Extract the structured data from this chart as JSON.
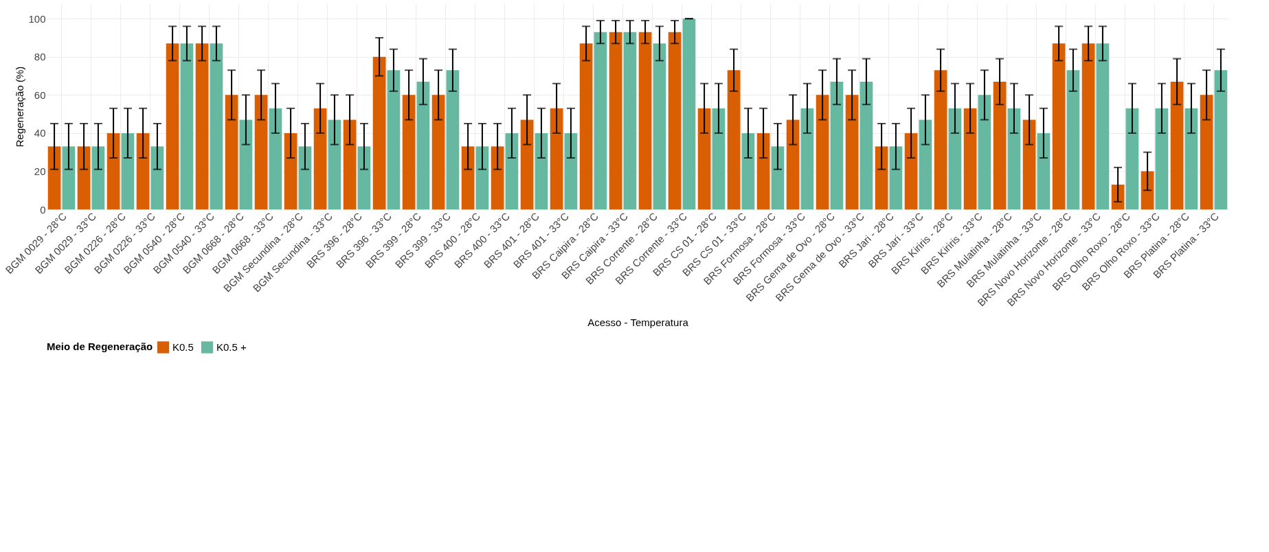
{
  "chart_data": {
    "type": "bar",
    "xlabel": "Acesso - Temperatura",
    "ylabel": "Regeneração (%)",
    "legend_title": "Meio de Regeneração",
    "categories": [
      "BGM 0029 - 28°C",
      "BGM 0029 - 33°C",
      "BGM 0226 - 28°C",
      "BGM 0226 - 33°C",
      "BGM 0540 - 28°C",
      "BGM 0540 - 33°C",
      "BGM 0668 - 28°C",
      "BGM 0668 - 33°C",
      "BGM Secundina - 28°C",
      "BGM Secundina - 33°C",
      "BRS 396 - 28°C",
      "BRS 396 - 33°C",
      "BRS 399 - 28°C",
      "BRS 399 - 33°C",
      "BRS 400 - 28°C",
      "BRS 400 - 33°C",
      "BRS 401 - 28°C",
      "BRS 401 - 33°C",
      "BRS Caipira - 28°C",
      "BRS Caipira - 33°C",
      "BRS Corrente - 28°C",
      "BRS Corrente - 33°C",
      "BRS CS 01 - 28°C",
      "BRS CS 01 - 33°C",
      "BRS Formosa - 28°C",
      "BRS Formosa - 33°C",
      "BRS Gema de Ovo - 28°C",
      "BRS Gema de Ovo - 33°C",
      "BRS Jari - 28°C",
      "BRS Jari - 33°C",
      "BRS Kiriris - 28°C",
      "BRS Kiriris - 33°C",
      "BRS Mulatinha - 28°C",
      "BRS Mulatinha - 33°C",
      "BRS Novo Horizonte - 28°C",
      "BRS Novo Horizonte - 33°C",
      "BRS Olho Roxo - 28°C",
      "BRS Olho Roxo - 33°C",
      "BRS Platina - 28°C",
      "BRS Platina - 33°C"
    ],
    "series": [
      {
        "name": "K0.5",
        "color": "#d95f02",
        "values": [
          33,
          33,
          40,
          40,
          87,
          87,
          60,
          60,
          40,
          53,
          47,
          80,
          60,
          60,
          33,
          33,
          47,
          53,
          87,
          93,
          93,
          93,
          53,
          73,
          40,
          47,
          60,
          60,
          33,
          40,
          73,
          53,
          67,
          47,
          87,
          87,
          13,
          20,
          67,
          60
        ],
        "errors": [
          12,
          12,
          13,
          13,
          9,
          9,
          13,
          13,
          13,
          13,
          13,
          10,
          13,
          13,
          12,
          12,
          13,
          13,
          9,
          6,
          6,
          6,
          13,
          11,
          13,
          13,
          13,
          13,
          12,
          13,
          11,
          13,
          12,
          13,
          9,
          9,
          9,
          10,
          12,
          13
        ]
      },
      {
        "name": "K0.5 +",
        "color": "#66b8a0",
        "values": [
          33,
          33,
          40,
          33,
          87,
          87,
          47,
          53,
          33,
          47,
          33,
          73,
          67,
          73,
          33,
          40,
          40,
          40,
          93,
          93,
          87,
          100,
          53,
          40,
          33,
          53,
          67,
          67,
          33,
          47,
          53,
          60,
          53,
          40,
          73,
          87,
          53,
          53,
          53,
          73
        ],
        "errors": [
          12,
          12,
          13,
          12,
          9,
          9,
          13,
          13,
          12,
          13,
          12,
          11,
          12,
          11,
          12,
          13,
          13,
          13,
          6,
          6,
          9,
          0,
          13,
          13,
          12,
          13,
          12,
          12,
          12,
          13,
          13,
          13,
          13,
          13,
          11,
          9,
          13,
          13,
          13,
          11
        ]
      }
    ],
    "ylim": [
      0,
      108
    ],
    "yticks": [
      0,
      20,
      40,
      60,
      80,
      100
    ],
    "grid": true,
    "legend": "bottom"
  }
}
